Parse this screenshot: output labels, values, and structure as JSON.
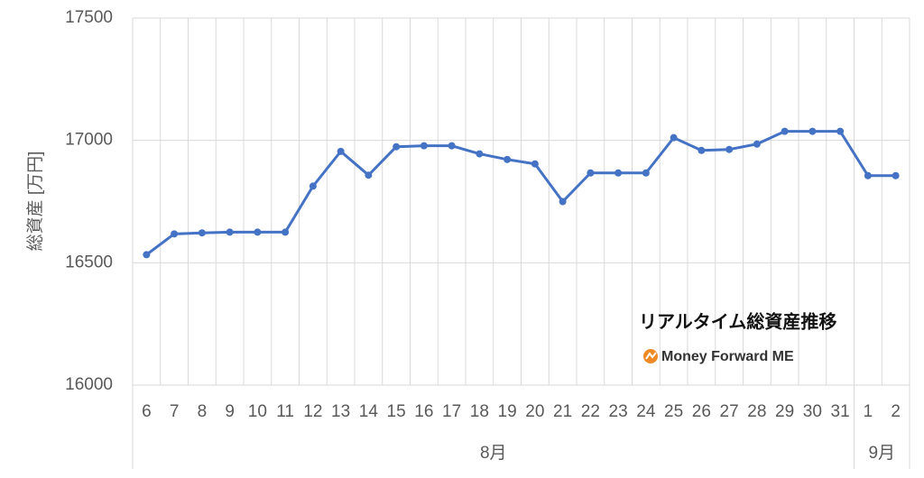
{
  "chart_data": {
    "type": "line",
    "y_label": "総資産 [万円]",
    "groups": [
      {
        "label": "8月",
        "categories": [
          "6",
          "7",
          "8",
          "9",
          "10",
          "11",
          "12",
          "13",
          "14",
          "15",
          "16",
          "17",
          "18",
          "19",
          "20",
          "21",
          "22",
          "23",
          "24",
          "25",
          "26",
          "27",
          "28",
          "29",
          "30",
          "31"
        ]
      },
      {
        "label": "9月",
        "categories": [
          "1",
          "2"
        ]
      }
    ],
    "series": [
      {
        "name": "総資産",
        "color": "#4472c4",
        "values": [
          16533,
          16618,
          16622,
          16625,
          16625,
          16625,
          16813,
          16955,
          16858,
          16974,
          16978,
          16978,
          16945,
          16922,
          16904,
          16750,
          16867,
          16867,
          16867,
          17011,
          16959,
          16963,
          16985,
          17037,
          17037,
          17037,
          16856,
          16856
        ]
      }
    ],
    "ylim": [
      16000,
      17500
    ],
    "yticks": [
      16000,
      16500,
      17000,
      17500
    ],
    "grid": true,
    "watermark": {
      "title": "リアルタイム総資産推移",
      "brand": "Money Forward ME"
    }
  }
}
